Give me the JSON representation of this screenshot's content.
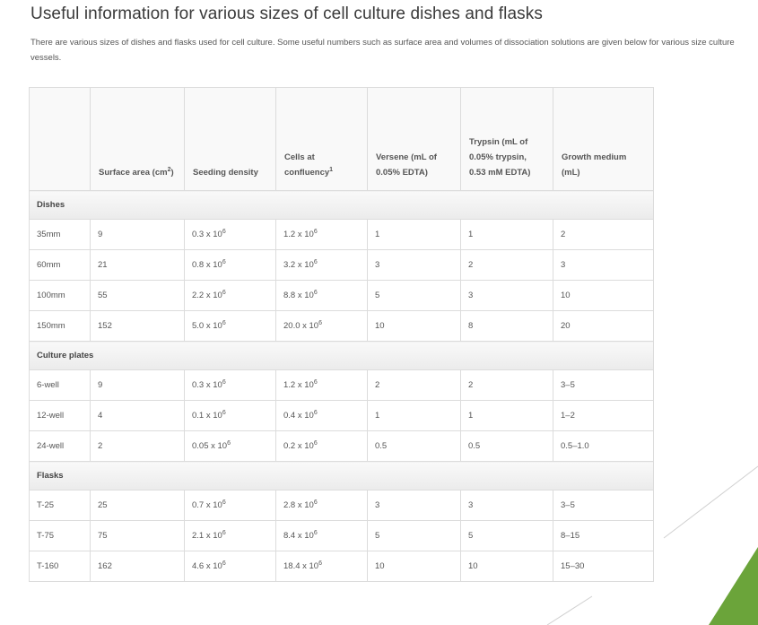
{
  "title": "Useful information for various sizes of cell culture dishes and flasks",
  "intro": "There are various sizes of dishes and flasks used for cell culture. Some useful numbers such as surface area and volumes of dissociation solutions are given below for various size culture vessels.",
  "headers": {
    "blank": "",
    "surface": "Surface area (cm",
    "surface_sup": "2",
    "surface_end": ")",
    "seeding": "Seeding density",
    "cells": "Cells at confluency",
    "cells_sup": "1",
    "versene": "Versene (mL of 0.05% EDTA)",
    "trypsin": "Trypsin (mL of 0.05% trypsin, 0.53 mM EDTA)",
    "growth": "Growth medium (mL)"
  },
  "groups": {
    "dishes": "Dishes",
    "plates": "Culture plates",
    "flasks": "Flasks"
  },
  "rows": [
    {
      "vessel": "35mm",
      "area": "9",
      "seed": "0.3 x 10",
      "seed_exp": "6",
      "cells": "1.2 x 10",
      "cells_exp": "6",
      "versene": "1",
      "trypsin": "1",
      "growth": "2"
    },
    {
      "vessel": "60mm",
      "area": "21",
      "seed": "0.8 x 10",
      "seed_exp": "6",
      "cells": "3.2 x 10",
      "cells_exp": "6",
      "versene": "3",
      "trypsin": "2",
      "growth": "3"
    },
    {
      "vessel": "100mm",
      "area": "55",
      "seed": "2.2 x 10",
      "seed_exp": "6",
      "cells": "8.8 x 10",
      "cells_exp": "6",
      "versene": "5",
      "trypsin": "3",
      "growth": "10"
    },
    {
      "vessel": "150mm",
      "area": "152",
      "seed": "5.0 x 10",
      "seed_exp": "6",
      "cells": "20.0 x 10",
      "cells_exp": "6",
      "versene": "10",
      "trypsin": "8",
      "growth": "20"
    },
    {
      "vessel": "6-well",
      "area": "9",
      "seed": "0.3 x 10",
      "seed_exp": "6",
      "cells": "1.2 x 10",
      "cells_exp": "6",
      "versene": "2",
      "trypsin": "2",
      "growth": "3–5"
    },
    {
      "vessel": "12-well",
      "area": "4",
      "seed": "0.1 x 10",
      "seed_exp": "6",
      "cells": "0.4 x 10",
      "cells_exp": "6",
      "versene": "1",
      "trypsin": "1",
      "growth": "1–2"
    },
    {
      "vessel": "24-well",
      "area": "2",
      "seed": "0.05 x 10",
      "seed_exp": "6",
      "cells": "0.2 x 10",
      "cells_exp": "6",
      "versene": "0.5",
      "trypsin": "0.5",
      "growth": "0.5–1.0"
    },
    {
      "vessel": "T-25",
      "area": "25",
      "seed": "0.7 x 10",
      "seed_exp": "6",
      "cells": "2.8 x 10",
      "cells_exp": "6",
      "versene": "3",
      "trypsin": "3",
      "growth": "3–5"
    },
    {
      "vessel": "T-75",
      "area": "75",
      "seed": "2.1 x 10",
      "seed_exp": "6",
      "cells": "8.4 x 10",
      "cells_exp": "6",
      "versene": "5",
      "trypsin": "5",
      "growth": "8–15"
    },
    {
      "vessel": "T-160",
      "area": "162",
      "seed": "4.6 x 10",
      "seed_exp": "6",
      "cells": "18.4 x 10",
      "cells_exp": "6",
      "versene": "10",
      "trypsin": "10",
      "growth": "15–30"
    }
  ],
  "colors": {
    "accent_green": "#6ba43a",
    "line_gray": "#dcdcdc"
  }
}
